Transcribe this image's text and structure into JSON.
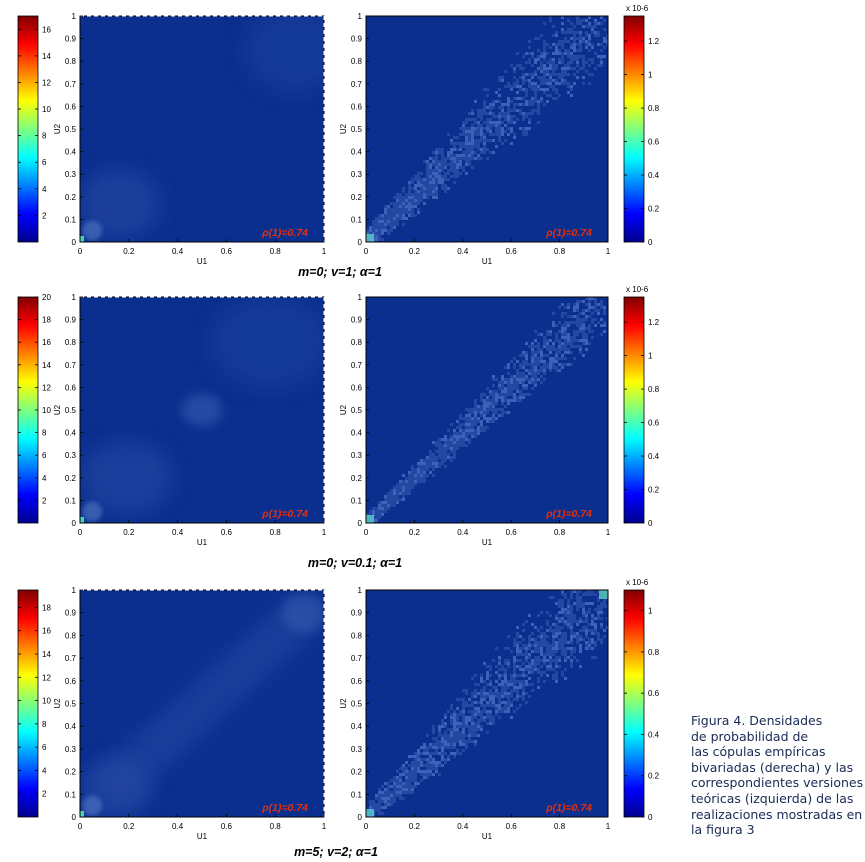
{
  "caption": {
    "lines": [
      "Figura 4. Densidades",
      "de probabilidad de",
      "las cópulas empíricas",
      "bivariadas (derecha) y las",
      "correspondientes versiones",
      "teóricas (izquierda) de las",
      "realizaciones mostradas en",
      "la figura 3"
    ]
  },
  "chart_data": [
    {
      "type": "heatmap",
      "row": 1,
      "side": "theoretical",
      "xlabel": "U1",
      "ylabel": "U2",
      "xlim": [
        0,
        1
      ],
      "ylim": [
        0,
        1
      ],
      "xticks": [
        "0",
        "0.2",
        "0.4",
        "0.6",
        "0.8",
        "1"
      ],
      "yticks": [
        "0",
        "0.1",
        "0.2",
        "0.3",
        "0.4",
        "0.5",
        "0.6",
        "0.7",
        "0.8",
        "0.9",
        "1"
      ],
      "annotation": "ρ(1)=0.74",
      "colorbar": {
        "min": 0,
        "max": 17,
        "ticks": [
          "2",
          "4",
          "6",
          "8",
          "10",
          "12",
          "14",
          "16"
        ],
        "exponent": ""
      }
    },
    {
      "type": "heatmap",
      "row": 1,
      "side": "empirical",
      "xlabel": "U1",
      "ylabel": "U2",
      "xlim": [
        0,
        1
      ],
      "ylim": [
        0,
        1
      ],
      "xticks": [
        "0",
        "0.2",
        "0.4",
        "0.6",
        "0.8",
        "1"
      ],
      "yticks": [
        "0",
        "0.1",
        "0.2",
        "0.3",
        "0.4",
        "0.5",
        "0.6",
        "0.7",
        "0.8",
        "0.9",
        "1"
      ],
      "annotation": "ρ(1)=0.74",
      "colorbar": {
        "min": 0,
        "max": 1.35,
        "ticks": [
          "0",
          "0.2",
          "0.4",
          "0.6",
          "0.8",
          "1",
          "1.2"
        ],
        "exponent": "x 10-6"
      }
    },
    {
      "type": "heatmap",
      "row": 2,
      "side": "theoretical",
      "xlabel": "U1",
      "ylabel": "U2",
      "xlim": [
        0,
        1
      ],
      "ylim": [
        0,
        1
      ],
      "xticks": [
        "0",
        "0.2",
        "0.4",
        "0.6",
        "0.8",
        "1"
      ],
      "yticks": [
        "0",
        "0.1",
        "0.2",
        "0.3",
        "0.4",
        "0.5",
        "0.6",
        "0.7",
        "0.8",
        "0.9",
        "1"
      ],
      "annotation": "ρ(1)=0.74",
      "colorbar": {
        "min": 0,
        "max": 20,
        "ticks": [
          "2",
          "4",
          "6",
          "8",
          "10",
          "12",
          "14",
          "16",
          "18",
          "20"
        ],
        "exponent": ""
      }
    },
    {
      "type": "heatmap",
      "row": 2,
      "side": "empirical",
      "xlabel": "U1",
      "ylabel": "U2",
      "xlim": [
        0,
        1
      ],
      "ylim": [
        0,
        1
      ],
      "xticks": [
        "0",
        "0.2",
        "0.4",
        "0.6",
        "0.8",
        "1"
      ],
      "yticks": [
        "0",
        "0.1",
        "0.2",
        "0.3",
        "0.4",
        "0.5",
        "0.6",
        "0.7",
        "0.8",
        "0.9",
        "1"
      ],
      "annotation": "ρ(1)=0.74",
      "colorbar": {
        "min": 0,
        "max": 1.35,
        "ticks": [
          "0",
          "0.2",
          "0.4",
          "0.6",
          "0.8",
          "1",
          "1.2"
        ],
        "exponent": "x 10-6"
      }
    },
    {
      "type": "heatmap",
      "row": 3,
      "side": "theoretical",
      "xlabel": "U1",
      "ylabel": "U2",
      "xlim": [
        0,
        1
      ],
      "ylim": [
        0,
        1
      ],
      "xticks": [
        "0",
        "0.2",
        "0.4",
        "0.6",
        "0.8",
        "1"
      ],
      "yticks": [
        "0",
        "0.1",
        "0.2",
        "0.3",
        "0.4",
        "0.5",
        "0.6",
        "0.7",
        "0.8",
        "0.9",
        "1"
      ],
      "annotation": "ρ(1)=0.74",
      "colorbar": {
        "min": 0,
        "max": 19.5,
        "ticks": [
          "2",
          "4",
          "6",
          "8",
          "10",
          "12",
          "14",
          "16",
          "18"
        ],
        "exponent": ""
      }
    },
    {
      "type": "heatmap",
      "row": 3,
      "side": "empirical",
      "xlabel": "U1",
      "ylabel": "U2",
      "xlim": [
        0,
        1
      ],
      "ylim": [
        0,
        1
      ],
      "xticks": [
        "0",
        "0.2",
        "0.4",
        "0.6",
        "0.8",
        "1"
      ],
      "yticks": [
        "0",
        "0.1",
        "0.2",
        "0.3",
        "0.4",
        "0.5",
        "0.6",
        "0.7",
        "0.8",
        "0.9",
        "1"
      ],
      "annotation": "ρ(1)=0.74",
      "colorbar": {
        "min": 0,
        "max": 1.1,
        "ticks": [
          "0",
          "0.2",
          "0.4",
          "0.6",
          "0.8",
          "1"
        ],
        "exponent": "x 10-6"
      }
    }
  ],
  "row_titles": [
    "m=0; v=1; α=1",
    "m=0; v=0.1; α=1",
    "m=5; v=2; α=1"
  ],
  "colors": {
    "background": "#0b2f8f",
    "annotation": "#e03010",
    "caption": "#1a2a55"
  }
}
